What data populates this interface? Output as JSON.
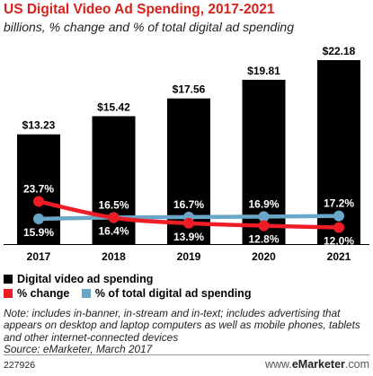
{
  "title": "US Digital Video Ad Spending, 2017-2021",
  "subtitle": "billions, % change and % of total digital ad spending",
  "chart_data": {
    "type": "bar",
    "categories": [
      "2017",
      "2018",
      "2019",
      "2020",
      "2021"
    ],
    "bar_labels": [
      "$13.23",
      "$15.42",
      "$17.56",
      "$19.81",
      "$22.18"
    ],
    "series": [
      {
        "name": "Digital video ad spending",
        "kind": "bar",
        "values": [
          13.23,
          15.42,
          17.56,
          19.81,
          22.18
        ],
        "color": "#000000"
      },
      {
        "name": "% change",
        "kind": "line",
        "values": [
          23.7,
          16.4,
          13.9,
          12.8,
          12.0
        ],
        "labels": [
          "23.7%",
          "16.4%",
          "13.9%",
          "12.8%",
          "12.0%"
        ],
        "color": "#ee1c25"
      },
      {
        "name": "% of total digital ad spending",
        "kind": "line",
        "values": [
          15.9,
          16.5,
          16.7,
          16.9,
          17.2
        ],
        "labels": [
          "15.9%",
          "16.5%",
          "16.7%",
          "16.9%",
          "17.2%"
        ],
        "color": "#6aa6c8"
      }
    ],
    "ylim": [
      0,
      22.18
    ],
    "grid": false,
    "legend_position": "bottom-left"
  },
  "note": "Note: includes in-banner, in-stream and in-text; includes advertising that appears on desktop and laptop computers as well as mobile phones, tablets and other internet-connected devices",
  "source": "Source: eMarketer, March 2017",
  "chart_id": "227926",
  "brand": {
    "prefix": "www.",
    "name": "eMarketer",
    "suffix": ".com"
  }
}
